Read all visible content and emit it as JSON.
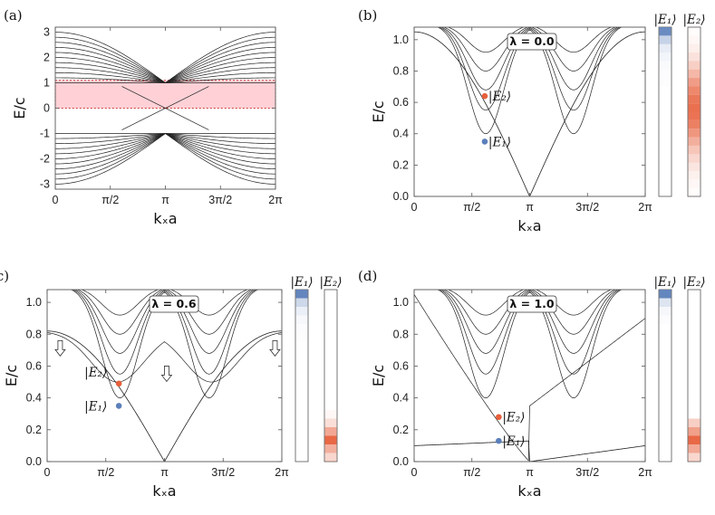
{
  "colors": {
    "e1": "#5b7fba",
    "e2": "#e8603c",
    "band": "#ffd1d6",
    "band_border": "#d23a3a"
  },
  "panels": [
    {
      "label": "(a)",
      "xlabel": "kₓa",
      "ylabel": "E/c",
      "xticks": [
        "0",
        "π/2",
        "π",
        "3π/2",
        "2π"
      ],
      "yticks": [
        "-3",
        "-2",
        "-1",
        "0",
        "1",
        "2",
        "3"
      ]
    },
    {
      "label": "(b)",
      "xlabel": "kₓa",
      "ylabel": "E/c",
      "lambda_text": "λ = 0.0",
      "xticks": [
        "0",
        "π/2",
        "π",
        "3π/2",
        "2π"
      ],
      "yticks": [
        "0.0",
        "0.2",
        "0.4",
        "0.6",
        "0.8",
        "1.0"
      ],
      "state1": "|E₁⟩",
      "state2": "|E₂⟩"
    },
    {
      "label": "(c)",
      "xlabel": "kₓa",
      "ylabel": "E/c",
      "lambda_text": "λ = 0.6",
      "xticks": [
        "0",
        "π/2",
        "π",
        "3π/2",
        "2π"
      ],
      "yticks": [
        "0.0",
        "0.2",
        "0.4",
        "0.6",
        "0.8",
        "1.0"
      ],
      "state1": "|E₁⟩",
      "state2": "|E₂⟩"
    },
    {
      "label": "(d)",
      "xlabel": "kₓa",
      "ylabel": "E/c",
      "lambda_text": "λ = 1.0",
      "xticks": [
        "0",
        "π/2",
        "π",
        "3π/2",
        "2π"
      ],
      "yticks": [
        "0.0",
        "0.2",
        "0.4",
        "0.6",
        "0.8",
        "1.0"
      ],
      "state1": "|E₁⟩",
      "state2": "|E₂⟩"
    }
  ],
  "chart_data": [
    {
      "type": "line",
      "title": "(a)",
      "xlabel": "kₓa",
      "ylabel": "E/c",
      "xlim": [
        0,
        6.283
      ],
      "ylim": [
        -3.2,
        3.2
      ],
      "series_description_values": {
        "band_count_per_sign": 11,
        "highlight_window": [
          0,
          1.1
        ]
      },
      "highlight": {
        "ymin": 0.0,
        "ymax": 1.1
      }
    },
    {
      "type": "line",
      "title": "(b)",
      "xlabel": "kₓa",
      "ylabel": "E/c",
      "xlim": [
        0,
        6.283
      ],
      "ylim": [
        0,
        1.08
      ],
      "lambda": 0.0,
      "points": [
        {
          "name": "|E₁⟩",
          "x": 1.92,
          "y": 0.35
        },
        {
          "name": "|E₂⟩",
          "x": 1.92,
          "y": 0.64
        }
      ],
      "e1_profile": [
        0.9,
        0.35,
        0.15,
        0.08,
        0.04,
        0.02,
        0.01,
        0,
        0,
        0,
        0,
        0,
        0,
        0,
        0,
        0,
        0,
        0,
        0,
        0
      ],
      "e2_profile": [
        0.02,
        0.05,
        0.1,
        0.18,
        0.3,
        0.45,
        0.62,
        0.75,
        0.85,
        0.9,
        0.88,
        0.8,
        0.66,
        0.5,
        0.36,
        0.25,
        0.16,
        0.09,
        0.05,
        0.02
      ]
    },
    {
      "type": "line",
      "title": "(c)",
      "xlabel": "kₓa",
      "ylabel": "E/c",
      "xlim": [
        0,
        6.283
      ],
      "ylim": [
        0,
        1.08
      ],
      "lambda": 0.6,
      "points": [
        {
          "name": "|E₁⟩",
          "x": 1.92,
          "y": 0.35
        },
        {
          "name": "|E₂⟩",
          "x": 1.92,
          "y": 0.49
        }
      ],
      "e1_profile": [
        0.95,
        0.3,
        0.12,
        0.05,
        0.02,
        0.01,
        0,
        0,
        0,
        0,
        0,
        0,
        0,
        0,
        0,
        0,
        0,
        0,
        0,
        0
      ],
      "e2_profile": [
        0,
        0,
        0,
        0,
        0,
        0,
        0,
        0,
        0,
        0,
        0,
        0,
        0,
        0,
        0.05,
        0.2,
        0.55,
        0.95,
        0.5,
        0.25
      ]
    },
    {
      "type": "line",
      "title": "(d)",
      "xlabel": "kₓa",
      "ylabel": "E/c",
      "xlim": [
        0,
        6.283
      ],
      "ylim": [
        0,
        1.08
      ],
      "lambda": 1.0,
      "points": [
        {
          "name": "|E₁⟩",
          "x": 2.3,
          "y": 0.13
        },
        {
          "name": "|E₂⟩",
          "x": 2.3,
          "y": 0.28
        }
      ],
      "e1_profile": [
        0.95,
        0.2,
        0.06,
        0.02,
        0,
        0,
        0,
        0,
        0,
        0,
        0,
        0,
        0,
        0,
        0,
        0,
        0,
        0,
        0,
        0
      ],
      "e2_profile": [
        0,
        0,
        0,
        0,
        0,
        0,
        0,
        0,
        0,
        0,
        0,
        0,
        0,
        0,
        0,
        0.3,
        0.6,
        0.95,
        0.55,
        0.25
      ]
    }
  ]
}
